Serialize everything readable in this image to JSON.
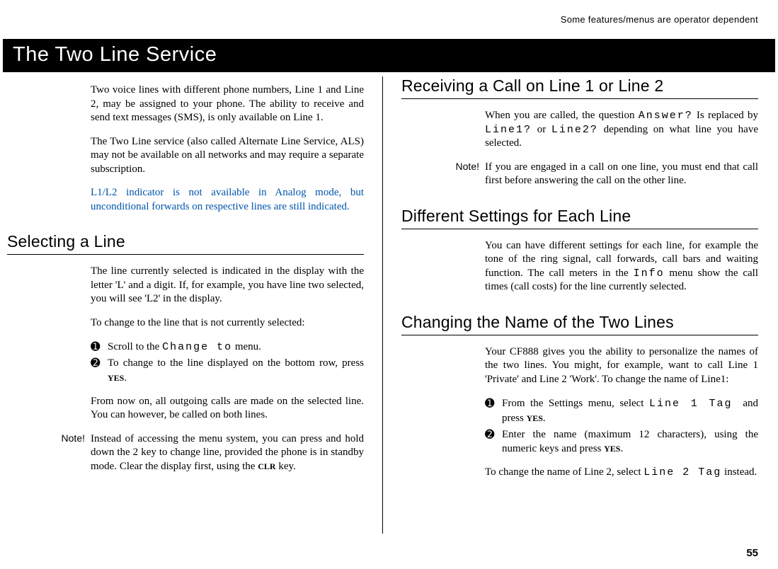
{
  "top_note": "Some features/menus are operator dependent",
  "title": "The Two Line Service",
  "left": {
    "intro1": "Two voice lines with different phone numbers, Line 1 and Line 2, may be assigned to your phone. The ability to receive and send text messages (SMS), is only available on Line 1.",
    "intro2": "The Two Line service  (also called Alternate Line Service, ALS) may not be available on all networks and may require a separate subscription.",
    "intro3": "L1/L2 indicator is not available in Analog mode, but unconditional forwards on respective lines are still indicated.",
    "selecting_heading": "Selecting a Line",
    "selecting_p1": "The line currently selected is indicated in the display with the letter 'L' and a digit. If, for example, you have line two selected, you will see 'L2' in the display.",
    "selecting_p2": "To change to the line that is not currently selected:",
    "step1_a": "Scroll to the ",
    "step1_lcd": "Change to",
    "step1_b": " menu.",
    "step2_a": "To change to the line displayed on the bottom row, press ",
    "step2_key": "YES",
    "step2_b": ".",
    "selecting_p3": "From now on, all outgoing calls are made on the selected line. You can however, be called on both lines.",
    "note_label": "Note!",
    "note_a": "Instead of accessing the menu system, you can press and hold down the 2 key to change line, provided the phone is in standby mode. Clear the display first, using the ",
    "note_key": "CLR",
    "note_b": " key."
  },
  "right": {
    "receiving_heading": "Receiving a Call on Line 1 or Line 2",
    "receiving_p1a": "When you are called, the question ",
    "receiving_lcd1": "Answer?",
    "receiving_p1b": " Is replaced by ",
    "receiving_lcd2": "Line1?",
    "receiving_p1c": " or ",
    "receiving_lcd3": "Line2?",
    "receiving_p1d": " depending on what line you have selected.",
    "note_label": "Note!",
    "note_body": "If you are engaged in a call on one line, you must end that call first before answering the call on the other line.",
    "diff_heading": "Different Settings for Each Line",
    "diff_p1a": "You can have different settings for each line, for example the tone of the ring signal, call forwards, call bars and waiting function. The call meters in the ",
    "diff_lcd": "Info",
    "diff_p1b": " menu show the call times (call costs) for the line currently selected.",
    "changing_heading": "Changing the Name of the Two Lines",
    "changing_p1": "Your CF888 gives you the ability to personalize the names of the two lines. You might, for example, want to call Line 1 'Private' and Line 2 'Work'. To change the name of Line1:",
    "cstep1_a": "From the Settings menu, select ",
    "cstep1_lcd": " Line 1 Tag ",
    "cstep1_b": " and press ",
    "cstep1_key": "YES",
    "cstep1_c": ".",
    "cstep2_a": "Enter the name (maximum 12 characters), using the numeric keys and press ",
    "cstep2_key": "YES",
    "cstep2_b": ".",
    "changing_p2a": "To change the name of Line 2, select ",
    "changing_lcd2": "Line 2 Tag",
    "changing_p2b": " instead."
  },
  "page_number": "55",
  "circled": {
    "one": "➊",
    "two": "➋"
  }
}
